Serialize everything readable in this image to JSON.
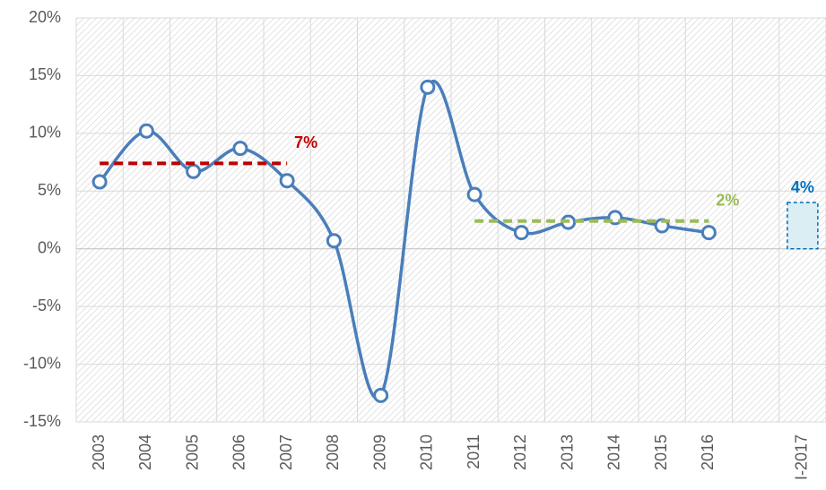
{
  "chart_data": {
    "type": "line",
    "categories": [
      "2003",
      "2004",
      "2005",
      "2006",
      "2007",
      "2008",
      "2009",
      "2010",
      "2011",
      "2012",
      "2013",
      "2014",
      "2015",
      "2016",
      null,
      "I-2017"
    ],
    "series": [
      {
        "color": "#4a7ebb",
        "values": [
          5.8,
          10.2,
          6.7,
          8.7,
          5.9,
          0.7,
          -12.7,
          14.0,
          4.7,
          1.4,
          2.3,
          2.7,
          2.0,
          1.4,
          null,
          null
        ]
      },
      {
        "type": "bar",
        "color": "#0070c0",
        "fill": "#daeef3",
        "values": [
          null,
          null,
          null,
          null,
          null,
          null,
          null,
          null,
          null,
          null,
          null,
          null,
          null,
          null,
          null,
          4
        ],
        "value_labels": [
          null,
          null,
          null,
          null,
          null,
          null,
          null,
          null,
          null,
          null,
          null,
          null,
          null,
          null,
          null,
          "4%"
        ]
      }
    ],
    "reference_lines": [
      {
        "value": 7.4,
        "label": "7%",
        "from": "2003",
        "to": "2007",
        "color": "#c00000"
      },
      {
        "value": 2.4,
        "label": "2%",
        "from": "2011",
        "to": "2016",
        "color": "#9bbb59"
      }
    ],
    "ylim": [
      -15,
      20
    ],
    "yticks": [
      {
        "value": -15,
        "label": "-15%"
      },
      {
        "value": -10,
        "label": "-10%"
      },
      {
        "value": -5,
        "label": "-5%"
      },
      {
        "value": 0,
        "label": "0%"
      },
      {
        "value": 5,
        "label": "5%"
      },
      {
        "value": 10,
        "label": "10%"
      },
      {
        "value": 15,
        "label": "15%"
      },
      {
        "value": 20,
        "label": "20%"
      }
    ],
    "grid": true,
    "smooth": true
  }
}
